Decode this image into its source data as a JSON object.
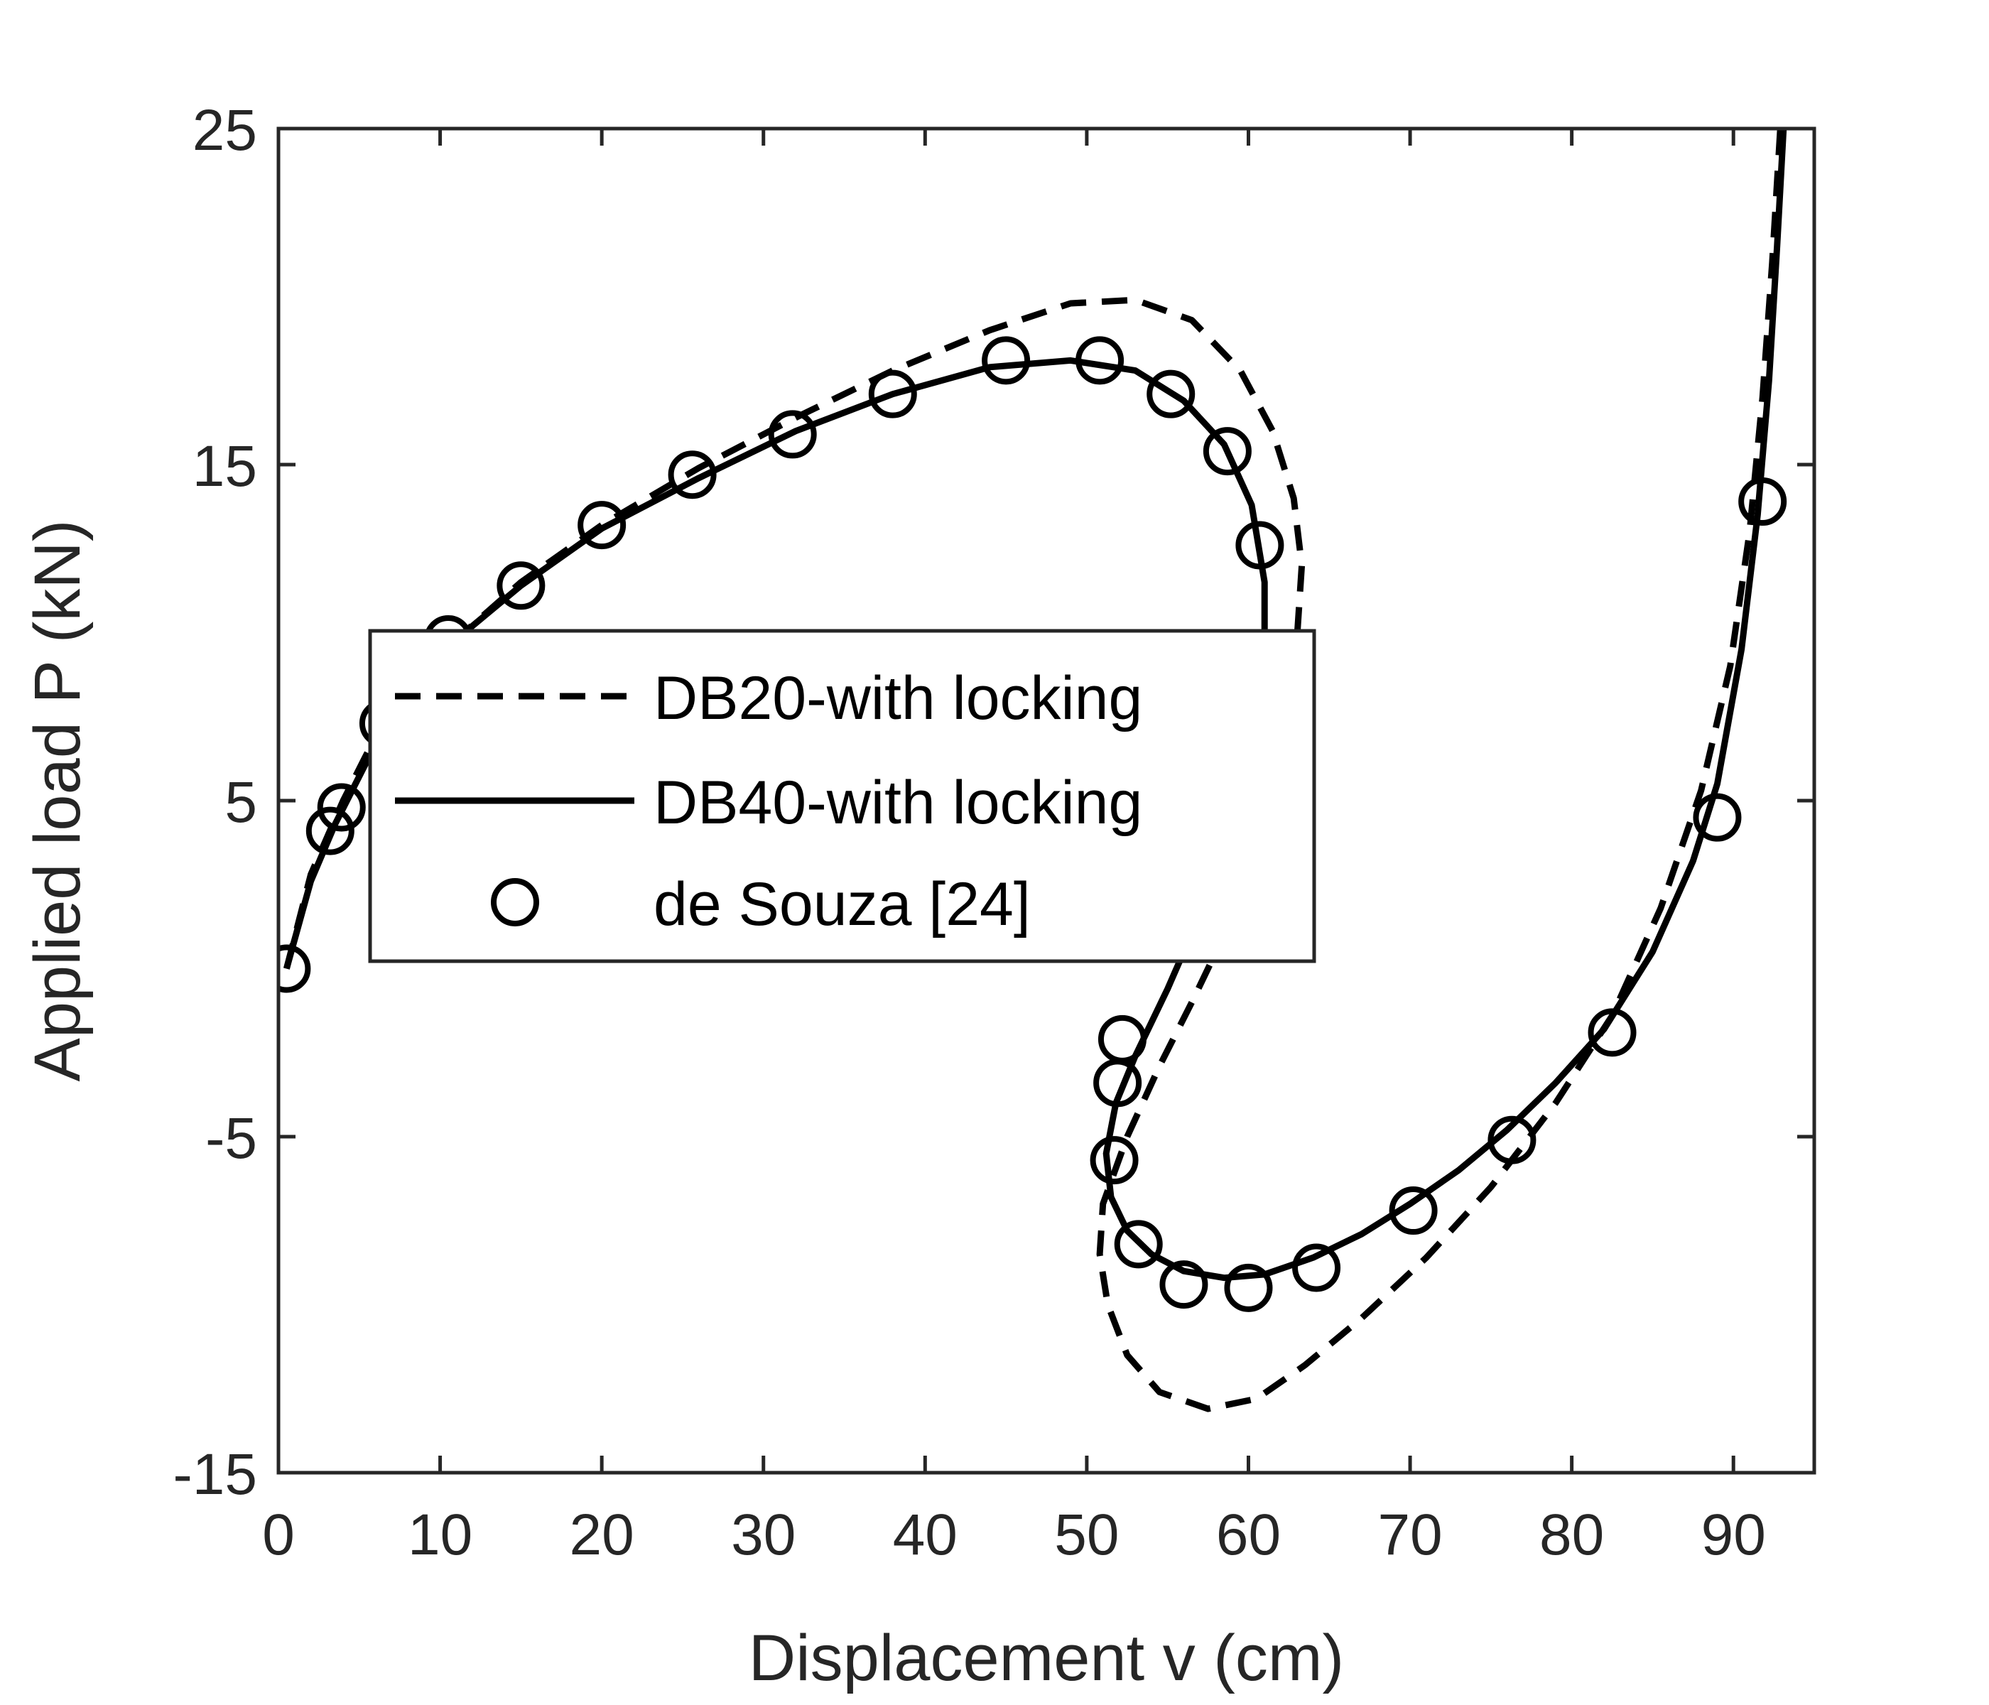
{
  "chart_data": {
    "type": "line",
    "title": "",
    "xlabel": "Displacement v (cm)",
    "ylabel": "Applied load P (kN)",
    "xlim": [
      0,
      95
    ],
    "ylim": [
      -15,
      25
    ],
    "xticks": [
      0,
      10,
      20,
      30,
      40,
      50,
      60,
      70,
      80,
      90
    ],
    "yticks": [
      -15,
      -5,
      5,
      15,
      25
    ],
    "grid": false,
    "legend_position": "center-left",
    "colors": {
      "axis": "#262626",
      "series": "#000000",
      "background": "#ffffff"
    },
    "series": [
      {
        "name": "DB20-with locking",
        "style": "dashed",
        "points": [
          [
            0.5,
            0.0
          ],
          [
            2.0,
            2.8
          ],
          [
            4.0,
            5.0
          ],
          [
            6.0,
            6.9
          ],
          [
            9.0,
            8.7
          ],
          [
            11.0,
            9.8
          ],
          [
            15.0,
            11.5
          ],
          [
            20.0,
            13.2
          ],
          [
            26.0,
            14.9
          ],
          [
            32.0,
            16.4
          ],
          [
            38.0,
            17.8
          ],
          [
            44.0,
            19.0
          ],
          [
            49.0,
            19.8
          ],
          [
            53.0,
            19.9
          ],
          [
            56.5,
            19.3
          ],
          [
            59.5,
            17.8
          ],
          [
            61.5,
            16.0
          ],
          [
            62.8,
            14.0
          ],
          [
            63.3,
            12.0
          ],
          [
            63.0,
            9.8
          ],
          [
            62.0,
            7.0
          ],
          [
            60.5,
            4.0
          ],
          [
            58.5,
            1.0
          ],
          [
            56.5,
            -1.0
          ],
          [
            54.5,
            -2.9
          ],
          [
            52.5,
            -5.0
          ],
          [
            51.0,
            -7.0
          ],
          [
            50.8,
            -8.5
          ],
          [
            51.3,
            -10.0
          ],
          [
            52.5,
            -11.5
          ],
          [
            54.5,
            -12.6
          ],
          [
            57.5,
            -13.1
          ],
          [
            60.5,
            -12.8
          ],
          [
            63.5,
            -11.8
          ],
          [
            67.0,
            -10.4
          ],
          [
            71.0,
            -8.6
          ],
          [
            75.0,
            -6.5
          ],
          [
            79.0,
            -4.0
          ],
          [
            82.5,
            -1.4
          ],
          [
            85.5,
            1.8
          ],
          [
            88.0,
            5.3
          ],
          [
            89.8,
            9.0
          ],
          [
            91.0,
            13.0
          ],
          [
            91.8,
            17.0
          ],
          [
            92.4,
            21.0
          ],
          [
            92.9,
            25.0
          ]
        ]
      },
      {
        "name": "DB40-with locking",
        "style": "solid",
        "points": [
          [
            0.5,
            0.0
          ],
          [
            2.0,
            2.6
          ],
          [
            3.5,
            4.3
          ],
          [
            5.5,
            6.2
          ],
          [
            8.0,
            8.2
          ],
          [
            11.0,
            9.8
          ],
          [
            15.0,
            11.4
          ],
          [
            20.0,
            13.1
          ],
          [
            26.0,
            14.6
          ],
          [
            32.0,
            16.0
          ],
          [
            38.0,
            17.1
          ],
          [
            44.0,
            17.9
          ],
          [
            49.0,
            18.1
          ],
          [
            53.0,
            17.8
          ],
          [
            56.0,
            16.9
          ],
          [
            58.5,
            15.6
          ],
          [
            60.2,
            13.8
          ],
          [
            61.0,
            11.5
          ],
          [
            61.0,
            9.0
          ],
          [
            60.2,
            6.5
          ],
          [
            58.8,
            4.0
          ],
          [
            57.0,
            1.6
          ],
          [
            55.0,
            -0.6
          ],
          [
            53.0,
            -2.6
          ],
          [
            51.8,
            -4.0
          ],
          [
            51.2,
            -5.5
          ],
          [
            51.5,
            -6.8
          ],
          [
            52.5,
            -7.8
          ],
          [
            54.0,
            -8.5
          ],
          [
            56.0,
            -9.0
          ],
          [
            58.5,
            -9.2
          ],
          [
            61.0,
            -9.1
          ],
          [
            64.0,
            -8.6
          ],
          [
            67.0,
            -7.9
          ],
          [
            70.0,
            -7.0
          ],
          [
            73.0,
            -6.0
          ],
          [
            76.0,
            -4.8
          ],
          [
            79.0,
            -3.4
          ],
          [
            82.0,
            -1.8
          ],
          [
            85.0,
            0.5
          ],
          [
            87.5,
            3.2
          ],
          [
            89.0,
            5.5
          ],
          [
            90.5,
            9.5
          ],
          [
            91.5,
            13.5
          ],
          [
            92.2,
            17.5
          ],
          [
            92.7,
            21.5
          ],
          [
            93.1,
            25.0
          ]
        ]
      },
      {
        "name": "de Souza [24]",
        "style": "markers",
        "marker": "circle",
        "points": [
          [
            0.5,
            0.0
          ],
          [
            3.2,
            4.1
          ],
          [
            3.9,
            4.8
          ],
          [
            6.5,
            7.3
          ],
          [
            10.5,
            9.8
          ],
          [
            15.0,
            11.4
          ],
          [
            20.0,
            13.2
          ],
          [
            25.6,
            14.7
          ],
          [
            31.8,
            15.9
          ],
          [
            38.0,
            17.1
          ],
          [
            45.0,
            18.1
          ],
          [
            50.8,
            18.1
          ],
          [
            55.2,
            17.1
          ],
          [
            58.7,
            15.4
          ],
          [
            60.7,
            12.6
          ],
          [
            52.2,
            -2.1
          ],
          [
            51.9,
            -3.4
          ],
          [
            51.7,
            -5.7
          ],
          [
            53.2,
            -8.2
          ],
          [
            56.0,
            -9.4
          ],
          [
            60.0,
            -9.5
          ],
          [
            64.2,
            -8.9
          ],
          [
            70.2,
            -7.2
          ],
          [
            76.3,
            -5.1
          ],
          [
            82.5,
            -1.9
          ],
          [
            89.0,
            4.5
          ],
          [
            91.8,
            13.9
          ]
        ]
      }
    ]
  }
}
